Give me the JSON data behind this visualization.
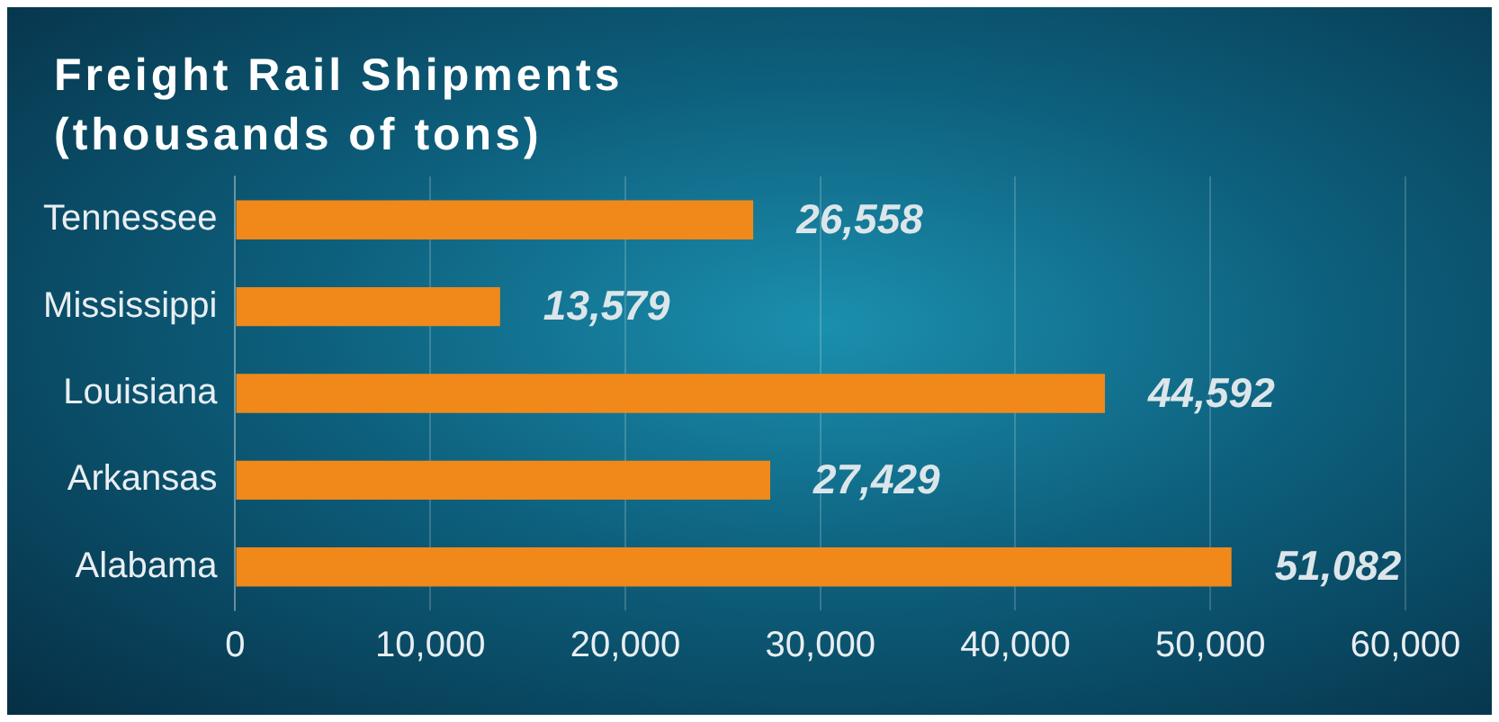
{
  "chart_data": {
    "type": "bar",
    "orientation": "horizontal",
    "title": "Freight Rail Shipments (thousands of tons)",
    "categories": [
      "Tennessee",
      "Mississippi",
      "Louisiana",
      "Arkansas",
      "Alabama"
    ],
    "values": [
      26558,
      13579,
      44592,
      27429,
      51082
    ],
    "value_labels": [
      "26,558",
      "13,579",
      "44,592",
      "27,429",
      "51,082"
    ],
    "color": "#f0891a",
    "xlim": [
      0,
      60000
    ],
    "xticks": [
      0,
      {
        "value": 10000,
        "label": "10,000"
      },
      {
        "value": 20000,
        "label": "20,000"
      },
      {
        "value": 30000,
        "label": "30,000"
      },
      {
        "value": 40000,
        "label": "40,000"
      },
      {
        "value": 50000,
        "label": "50,000"
      },
      {
        "value": 60000,
        "label": "60,000"
      }
    ],
    "grid": "x",
    "legend": false
  }
}
